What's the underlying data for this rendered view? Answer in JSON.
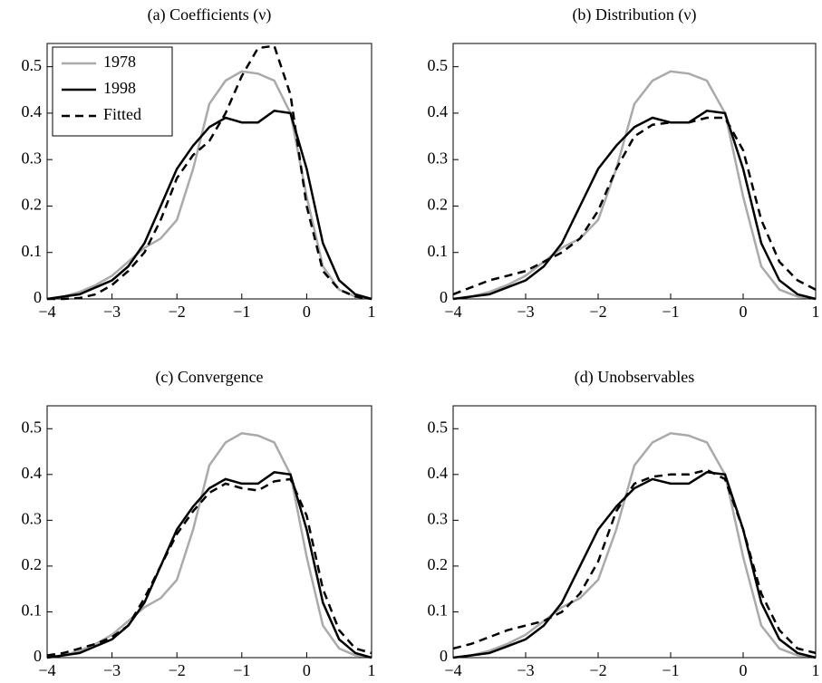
{
  "chart_data": [
    {
      "type": "line",
      "title": "(a) Coefficients (ν)",
      "x": [
        -4,
        -3.75,
        -3.5,
        -3.25,
        -3,
        -2.75,
        -2.5,
        -2.25,
        -2,
        -1.75,
        -1.5,
        -1.25,
        -1,
        -0.75,
        -0.5,
        -0.25,
        0,
        0.25,
        0.5,
        0.75,
        1
      ],
      "series": [
        {
          "name": "1978",
          "color": "#aaaaaa",
          "linestyle": "solid",
          "values": [
            0,
            0.005,
            0.015,
            0.03,
            0.05,
            0.08,
            0.11,
            0.13,
            0.17,
            0.28,
            0.42,
            0.47,
            0.49,
            0.485,
            0.47,
            0.4,
            0.22,
            0.07,
            0.02,
            0.005,
            0
          ]
        },
        {
          "name": "1998",
          "color": "#000000",
          "linestyle": "solid",
          "values": [
            0,
            0.005,
            0.01,
            0.025,
            0.04,
            0.07,
            0.12,
            0.2,
            0.28,
            0.33,
            0.37,
            0.39,
            0.38,
            0.38,
            0.405,
            0.4,
            0.28,
            0.12,
            0.04,
            0.01,
            0
          ]
        },
        {
          "name": "Fitted",
          "color": "#000000",
          "linestyle": "dashed",
          "values": [
            0,
            0,
            0.002,
            0.01,
            0.03,
            0.06,
            0.1,
            0.17,
            0.26,
            0.31,
            0.34,
            0.4,
            0.48,
            0.54,
            0.545,
            0.44,
            0.2,
            0.06,
            0.02,
            0.005,
            0
          ]
        }
      ],
      "xlim": [
        -4,
        1
      ],
      "xticks": [
        {
          "value": -4,
          "label": "−4"
        },
        {
          "value": -3,
          "label": "−3"
        },
        {
          "value": -2,
          "label": "−2"
        },
        {
          "value": -1,
          "label": "−1"
        },
        0,
        1
      ],
      "ylim": [
        0,
        0.55
      ],
      "yticks": [
        0,
        0.1,
        0.2,
        0.3,
        0.4,
        0.5
      ],
      "legend": "upper left"
    },
    {
      "type": "line",
      "title": "(b) Distribution (ν)",
      "x": [
        -4,
        -3.75,
        -3.5,
        -3.25,
        -3,
        -2.75,
        -2.5,
        -2.25,
        -2,
        -1.75,
        -1.5,
        -1.25,
        -1,
        -0.75,
        -0.5,
        -0.25,
        0,
        0.25,
        0.5,
        0.75,
        1
      ],
      "series": [
        {
          "color": "#aaaaaa",
          "linestyle": "solid",
          "values": [
            0,
            0.005,
            0.015,
            0.03,
            0.05,
            0.08,
            0.11,
            0.13,
            0.17,
            0.28,
            0.42,
            0.47,
            0.49,
            0.485,
            0.47,
            0.4,
            0.22,
            0.07,
            0.02,
            0.005,
            0
          ]
        },
        {
          "color": "#000000",
          "linestyle": "solid",
          "values": [
            0,
            0.005,
            0.01,
            0.025,
            0.04,
            0.07,
            0.12,
            0.2,
            0.28,
            0.33,
            0.37,
            0.39,
            0.38,
            0.38,
            0.405,
            0.4,
            0.28,
            0.12,
            0.04,
            0.01,
            0
          ]
        },
        {
          "color": "#000000",
          "linestyle": "dashed",
          "values": [
            0.01,
            0.025,
            0.04,
            0.05,
            0.06,
            0.08,
            0.1,
            0.13,
            0.19,
            0.28,
            0.35,
            0.375,
            0.38,
            0.38,
            0.39,
            0.39,
            0.32,
            0.17,
            0.08,
            0.04,
            0.02
          ]
        }
      ],
      "xlim": [
        -4,
        1
      ],
      "xticks": [
        {
          "value": -4,
          "label": "−4"
        },
        {
          "value": -3,
          "label": "−3"
        },
        {
          "value": -2,
          "label": "−2"
        },
        {
          "value": -1,
          "label": "−1"
        },
        0,
        1
      ],
      "ylim": [
        0,
        0.55
      ],
      "yticks": [
        0,
        0.1,
        0.2,
        0.3,
        0.4,
        0.5
      ]
    },
    {
      "type": "line",
      "title": "(c) Convergence",
      "x": [
        -4,
        -3.75,
        -3.5,
        -3.25,
        -3,
        -2.75,
        -2.5,
        -2.25,
        -2,
        -1.75,
        -1.5,
        -1.25,
        -1,
        -0.75,
        -0.5,
        -0.25,
        0,
        0.25,
        0.5,
        0.75,
        1
      ],
      "series": [
        {
          "color": "#aaaaaa",
          "linestyle": "solid",
          "values": [
            0,
            0.005,
            0.015,
            0.03,
            0.05,
            0.08,
            0.11,
            0.13,
            0.17,
            0.28,
            0.42,
            0.47,
            0.49,
            0.485,
            0.47,
            0.4,
            0.22,
            0.07,
            0.02,
            0.005,
            0
          ]
        },
        {
          "color": "#000000",
          "linestyle": "solid",
          "values": [
            0,
            0.005,
            0.01,
            0.025,
            0.04,
            0.07,
            0.12,
            0.2,
            0.28,
            0.33,
            0.37,
            0.39,
            0.38,
            0.38,
            0.405,
            0.4,
            0.28,
            0.12,
            0.04,
            0.01,
            0
          ]
        },
        {
          "color": "#000000",
          "linestyle": "dashed",
          "values": [
            0.005,
            0.01,
            0.02,
            0.03,
            0.045,
            0.07,
            0.13,
            0.2,
            0.27,
            0.32,
            0.36,
            0.38,
            0.37,
            0.365,
            0.385,
            0.39,
            0.31,
            0.15,
            0.06,
            0.02,
            0.01
          ]
        }
      ],
      "xlim": [
        -4,
        1
      ],
      "xticks": [
        {
          "value": -4,
          "label": "−4"
        },
        {
          "value": -3,
          "label": "−3"
        },
        {
          "value": -2,
          "label": "−2"
        },
        {
          "value": -1,
          "label": "−1"
        },
        0,
        1
      ],
      "ylim": [
        0,
        0.55
      ],
      "yticks": [
        0,
        0.1,
        0.2,
        0.3,
        0.4,
        0.5
      ]
    },
    {
      "type": "line",
      "title": "(d) Unobservables",
      "x": [
        -4,
        -3.75,
        -3.5,
        -3.25,
        -3,
        -2.75,
        -2.5,
        -2.25,
        -2,
        -1.75,
        -1.5,
        -1.25,
        -1,
        -0.75,
        -0.5,
        -0.25,
        0,
        0.25,
        0.5,
        0.75,
        1
      ],
      "series": [
        {
          "color": "#aaaaaa",
          "linestyle": "solid",
          "values": [
            0,
            0.005,
            0.015,
            0.03,
            0.05,
            0.08,
            0.11,
            0.13,
            0.17,
            0.28,
            0.42,
            0.47,
            0.49,
            0.485,
            0.47,
            0.4,
            0.22,
            0.07,
            0.02,
            0.005,
            0
          ]
        },
        {
          "color": "#000000",
          "linestyle": "solid",
          "values": [
            0,
            0.005,
            0.01,
            0.025,
            0.04,
            0.07,
            0.12,
            0.2,
            0.28,
            0.33,
            0.37,
            0.39,
            0.38,
            0.38,
            0.405,
            0.4,
            0.28,
            0.12,
            0.04,
            0.01,
            0
          ]
        },
        {
          "color": "#000000",
          "linestyle": "dashed",
          "values": [
            0.02,
            0.03,
            0.045,
            0.06,
            0.07,
            0.08,
            0.1,
            0.14,
            0.21,
            0.32,
            0.38,
            0.395,
            0.4,
            0.4,
            0.41,
            0.39,
            0.28,
            0.14,
            0.06,
            0.02,
            0.01
          ]
        }
      ],
      "xlim": [
        -4,
        1
      ],
      "xticks": [
        {
          "value": -4,
          "label": "−4"
        },
        {
          "value": -3,
          "label": "−3"
        },
        {
          "value": -2,
          "label": "−2"
        },
        {
          "value": -1,
          "label": "−1"
        },
        0,
        1
      ],
      "ylim": [
        0,
        0.55
      ],
      "yticks": [
        0,
        0.1,
        0.2,
        0.3,
        0.4,
        0.5
      ]
    }
  ]
}
